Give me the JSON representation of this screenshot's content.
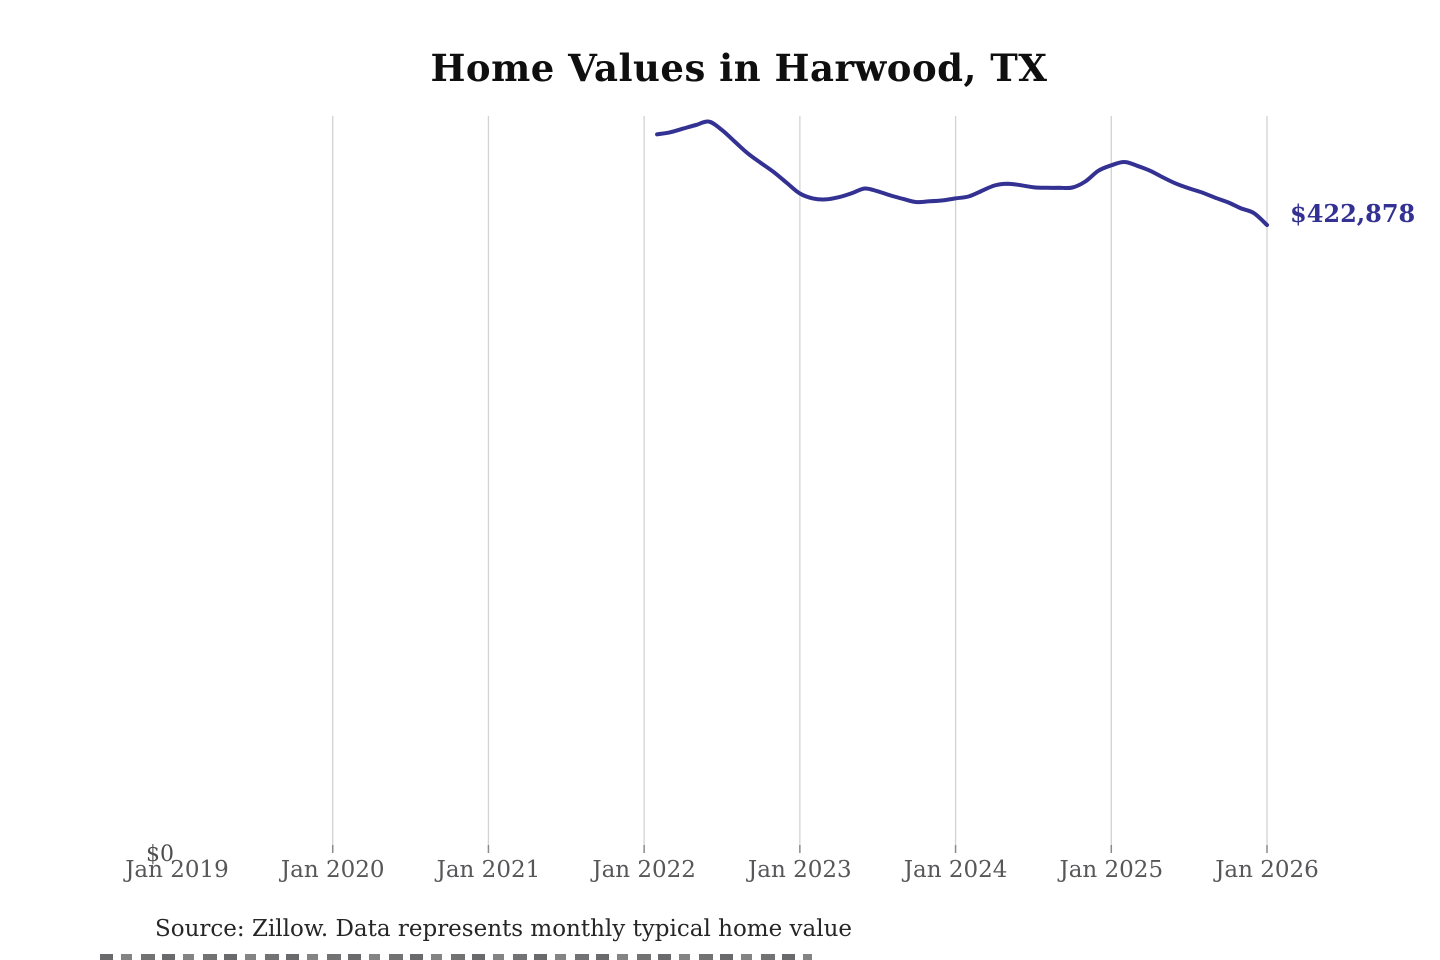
{
  "chart_data": {
    "type": "line",
    "title": "Home Values in Harwood, TX",
    "x_ticks": [
      "Jan 2019",
      "Jan 2020",
      "Jan 2021",
      "Jan 2022",
      "Jan 2023",
      "Jan 2024",
      "Jan 2025",
      "Jan 2026"
    ],
    "x_range": [
      "Jan 2019",
      "Jan 2026"
    ],
    "ylim": [
      0,
      497000
    ],
    "y_zero_label": "$0",
    "end_label": "$422,878",
    "end_value": 422878,
    "line_color": "#333192",
    "gridline_color": "#d2d2d2",
    "grid": "vertical-only, no gridline at Jan 2019",
    "legend": "none",
    "series": [
      {
        "name": "Monthly typical home value",
        "points": [
          {
            "date": "2022-01",
            "value": 484600
          },
          {
            "date": "2022-02",
            "value": 486000
          },
          {
            "date": "2022-03",
            "value": 488500
          },
          {
            "date": "2022-04",
            "value": 491000
          },
          {
            "date": "2022-05",
            "value": 493300
          },
          {
            "date": "2022-06",
            "value": 487500
          },
          {
            "date": "2022-07",
            "value": 479500
          },
          {
            "date": "2022-08",
            "value": 471500
          },
          {
            "date": "2022-09",
            "value": 465100
          },
          {
            "date": "2022-10",
            "value": 458800
          },
          {
            "date": "2022-11",
            "value": 451500
          },
          {
            "date": "2022-12",
            "value": 444300
          },
          {
            "date": "2023-01",
            "value": 441000
          },
          {
            "date": "2023-02",
            "value": 440300
          },
          {
            "date": "2023-03",
            "value": 441800
          },
          {
            "date": "2023-04",
            "value": 444500
          },
          {
            "date": "2023-05",
            "value": 447700
          },
          {
            "date": "2023-06",
            "value": 445800
          },
          {
            "date": "2023-07",
            "value": 443000
          },
          {
            "date": "2023-08",
            "value": 440500
          },
          {
            "date": "2023-09",
            "value": 438500
          },
          {
            "date": "2023-10",
            "value": 439000
          },
          {
            "date": "2023-11",
            "value": 439600
          },
          {
            "date": "2023-12",
            "value": 441000
          },
          {
            "date": "2024-01",
            "value": 442300
          },
          {
            "date": "2024-02",
            "value": 446000
          },
          {
            "date": "2024-03",
            "value": 449800
          },
          {
            "date": "2024-04",
            "value": 451000
          },
          {
            "date": "2024-05",
            "value": 450000
          },
          {
            "date": "2024-06",
            "value": 448600
          },
          {
            "date": "2024-07",
            "value": 448200
          },
          {
            "date": "2024-08",
            "value": 448200
          },
          {
            "date": "2024-09",
            "value": 448400
          },
          {
            "date": "2024-10",
            "value": 452500
          },
          {
            "date": "2024-11",
            "value": 459800
          },
          {
            "date": "2024-12",
            "value": 463500
          },
          {
            "date": "2025-01",
            "value": 465800
          },
          {
            "date": "2025-02",
            "value": 463200
          },
          {
            "date": "2025-03",
            "value": 459800
          },
          {
            "date": "2025-04",
            "value": 455200
          },
          {
            "date": "2025-05",
            "value": 451000
          },
          {
            "date": "2025-06",
            "value": 447800
          },
          {
            "date": "2025-07",
            "value": 445000
          },
          {
            "date": "2025-08",
            "value": 441500
          },
          {
            "date": "2025-09",
            "value": 438300
          },
          {
            "date": "2025-10",
            "value": 434200
          },
          {
            "date": "2025-11",
            "value": 430900
          },
          {
            "date": "2025-12",
            "value": 422878
          }
        ]
      }
    ]
  },
  "source": {
    "text": "Source: Zillow. Data represents monthly typical home value"
  }
}
